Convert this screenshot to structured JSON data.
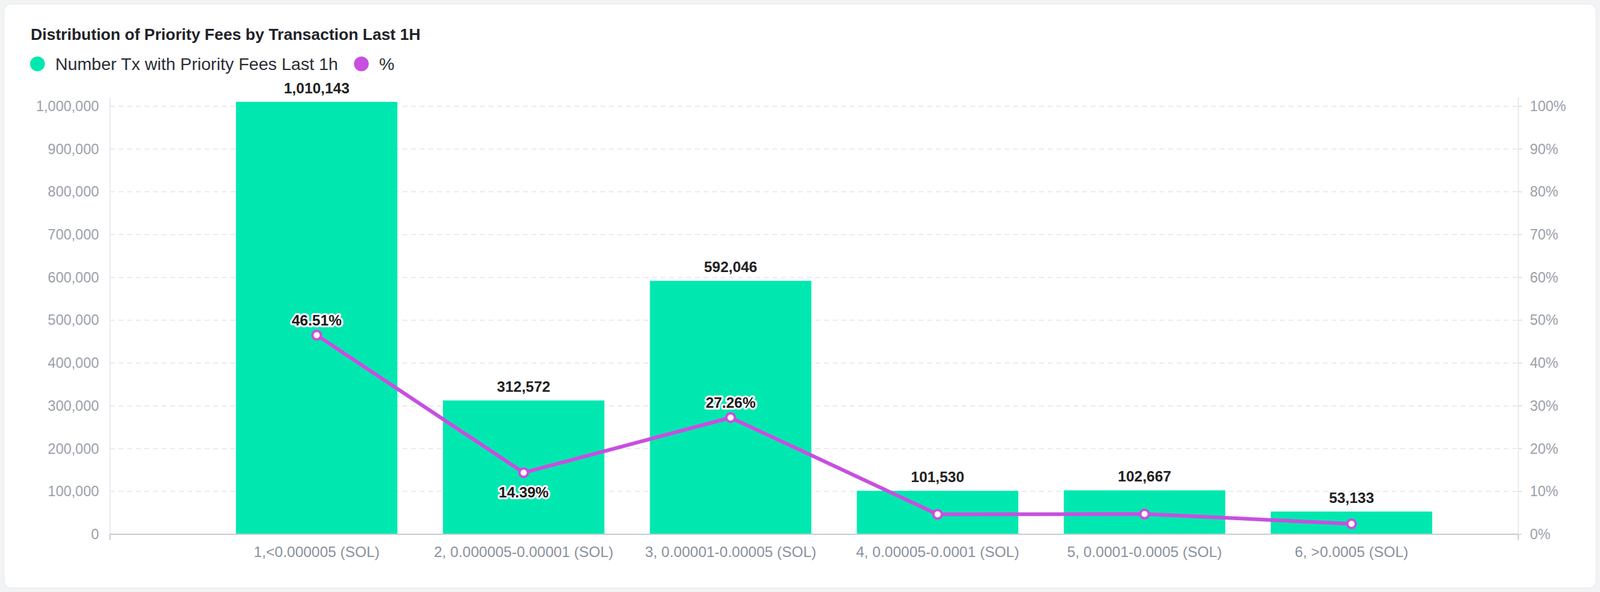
{
  "chart_data": {
    "type": "bar",
    "title": "Distribution of Priority Fees by Transaction Last 1H",
    "categories": [
      "1,<0.000005 (SOL)",
      "2, 0.000005-0.00001 (SOL)",
      "3, 0.00001-0.00005 (SOL)",
      "4, 0.00005-0.0001 (SOL)",
      "5, 0.0001-0.0005 (SOL)",
      "6, >0.0005 (SOL)"
    ],
    "series": [
      {
        "name": "Number Tx with Priority Fees Last 1h",
        "type": "bar",
        "color": "#00e8b0",
        "values": [
          1010143,
          312572,
          592046,
          101530,
          102667,
          53133
        ],
        "value_labels": [
          "1,010,143",
          "312,572",
          "592,046",
          "101,530",
          "102,667",
          "53,133"
        ]
      },
      {
        "name": "%",
        "type": "line",
        "color": "#c84fe0",
        "axis": "y2",
        "marker": "circle",
        "values": [
          46.51,
          14.39,
          27.26,
          4.67,
          4.73,
          2.45
        ],
        "value_labels": [
          "46.51%",
          "14.39%",
          "27.26%",
          null,
          null,
          null
        ]
      }
    ],
    "ylim": [
      0,
      1020000
    ],
    "yticks": [
      0,
      {
        "value": 100000,
        "label": "100,000"
      },
      {
        "value": 200000,
        "label": "200,000"
      },
      {
        "value": 300000,
        "label": "300,000"
      },
      {
        "value": 400000,
        "label": "400,000"
      },
      {
        "value": 500000,
        "label": "500,000"
      },
      {
        "value": 600000,
        "label": "600,000"
      },
      {
        "value": 700000,
        "label": "700,000"
      },
      {
        "value": 800000,
        "label": "800,000"
      },
      {
        "value": 900000,
        "label": "900,000"
      },
      {
        "value": 1000000,
        "label": "1,000,000"
      }
    ],
    "y2lim": [
      0,
      102
    ],
    "y2ticks": [
      {
        "value": 0,
        "label": "0%"
      },
      {
        "value": 10,
        "label": "10%"
      },
      {
        "value": 20,
        "label": "20%"
      },
      {
        "value": 30,
        "label": "30%"
      },
      {
        "value": 40,
        "label": "40%"
      },
      {
        "value": 50,
        "label": "50%"
      },
      {
        "value": 60,
        "label": "60%"
      },
      {
        "value": 70,
        "label": "70%"
      },
      {
        "value": 80,
        "label": "80%"
      },
      {
        "value": 90,
        "label": "90%"
      },
      {
        "value": 100,
        "label": "100%"
      }
    ],
    "grid": true,
    "legend": "top-left",
    "data_labels": true
  }
}
